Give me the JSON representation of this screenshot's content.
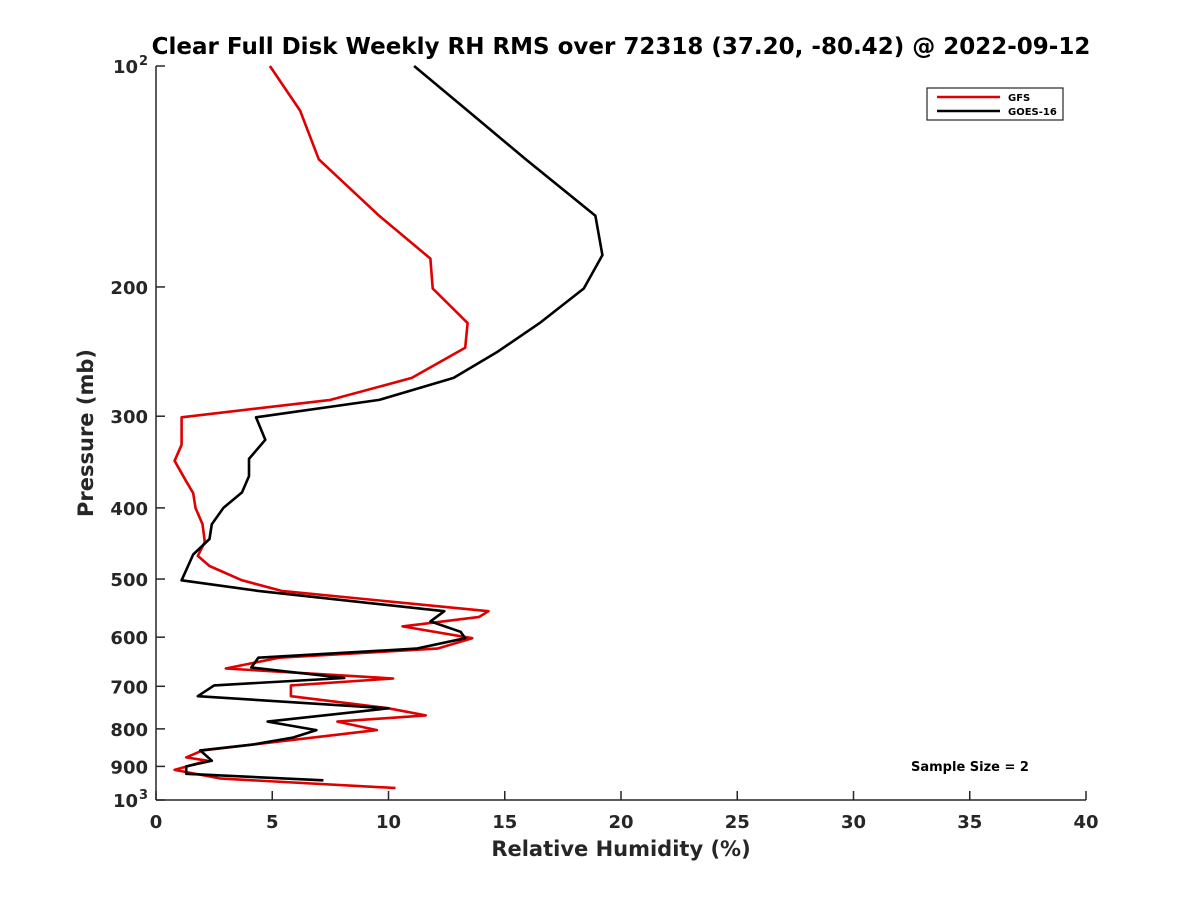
{
  "chart_data": {
    "type": "line",
    "title": "Clear Full Disk Weekly RH RMS over 72318 (37.20, -80.42) @ 2022-09-12",
    "xlabel": "Relative Humidity (%)",
    "ylabel": "Pressure (mb)",
    "xlim": [
      0,
      40
    ],
    "ylim": [
      100,
      1000
    ],
    "y_scale": "log",
    "y_reversed": true,
    "grid": false,
    "legend_position": "top-right",
    "x_ticks": [
      0,
      5,
      10,
      15,
      20,
      25,
      30,
      35,
      40
    ],
    "x_tick_labels": [
      "0",
      "5",
      "10",
      "15",
      "20",
      "25",
      "30",
      "35",
      "40"
    ],
    "y_ticks": [
      {
        "value": 100,
        "label": "10",
        "exp": "2"
      },
      {
        "value": 200,
        "label": "200",
        "exp": ""
      },
      {
        "value": 300,
        "label": "300",
        "exp": ""
      },
      {
        "value": 400,
        "label": "400",
        "exp": ""
      },
      {
        "value": 500,
        "label": "500",
        "exp": ""
      },
      {
        "value": 600,
        "label": "600",
        "exp": ""
      },
      {
        "value": 700,
        "label": "700",
        "exp": ""
      },
      {
        "value": 800,
        "label": "800",
        "exp": ""
      },
      {
        "value": 900,
        "label": "900",
        "exp": ""
      },
      {
        "value": 1000,
        "label": "10",
        "exp": "3"
      }
    ],
    "annotation": "Sample Size = 2",
    "series": [
      {
        "name": "GFS",
        "color": "#e00000",
        "points": [
          [
            4.9,
            100
          ],
          [
            6.2,
            115
          ],
          [
            7.0,
            134
          ],
          [
            9.6,
            160
          ],
          [
            11.8,
            183
          ],
          [
            11.9,
            201
          ],
          [
            13.4,
            224
          ],
          [
            13.3,
            242
          ],
          [
            11.0,
            266
          ],
          [
            7.5,
            285
          ],
          [
            1.1,
            301
          ],
          [
            1.1,
            328
          ],
          [
            0.8,
            345
          ],
          [
            1.3,
            368
          ],
          [
            1.6,
            382
          ],
          [
            1.7,
            400
          ],
          [
            2.0,
            421
          ],
          [
            2.1,
            445
          ],
          [
            1.8,
            465
          ],
          [
            2.3,
            480
          ],
          [
            3.7,
            502
          ],
          [
            5.4,
            519
          ],
          [
            14.3,
            553
          ],
          [
            13.9,
            563
          ],
          [
            10.6,
            580
          ],
          [
            13.6,
            602
          ],
          [
            12.1,
            622
          ],
          [
            5.3,
            640
          ],
          [
            3.0,
            662
          ],
          [
            10.2,
            683
          ],
          [
            5.8,
            698
          ],
          [
            5.8,
            722
          ],
          [
            10.0,
            750
          ],
          [
            11.6,
            767
          ],
          [
            7.8,
            782
          ],
          [
            9.5,
            803
          ],
          [
            2.0,
            856
          ],
          [
            1.3,
            875
          ],
          [
            2.2,
            884
          ],
          [
            0.8,
            910
          ],
          [
            2.8,
            935
          ],
          [
            10.3,
            963
          ]
        ]
      },
      {
        "name": "GOES-16",
        "color": "#000000",
        "points": [
          [
            11.1,
            100
          ],
          [
            13.4,
            115
          ],
          [
            15.9,
            134
          ],
          [
            18.9,
            160
          ],
          [
            19.2,
            181
          ],
          [
            18.4,
            201
          ],
          [
            16.5,
            224
          ],
          [
            14.7,
            245
          ],
          [
            12.8,
            266
          ],
          [
            9.6,
            285
          ],
          [
            4.3,
            301
          ],
          [
            4.7,
            323
          ],
          [
            4.0,
            343
          ],
          [
            4.0,
            362
          ],
          [
            3.7,
            381
          ],
          [
            2.9,
            400
          ],
          [
            2.4,
            421
          ],
          [
            2.3,
            441
          ],
          [
            1.6,
            463
          ],
          [
            1.1,
            502
          ],
          [
            4.4,
            519
          ],
          [
            12.4,
            553
          ],
          [
            11.8,
            571
          ],
          [
            13.1,
            590
          ],
          [
            13.3,
            602
          ],
          [
            11.2,
            622
          ],
          [
            4.4,
            640
          ],
          [
            4.1,
            660
          ],
          [
            8.1,
            682
          ],
          [
            2.5,
            698
          ],
          [
            1.8,
            722
          ],
          [
            10.0,
            750
          ],
          [
            4.8,
            782
          ],
          [
            6.9,
            803
          ],
          [
            5.9,
            822
          ],
          [
            4.2,
            840
          ],
          [
            1.9,
            856
          ],
          [
            2.4,
            884
          ],
          [
            1.3,
            900
          ],
          [
            1.3,
            921
          ],
          [
            7.2,
            940
          ]
        ]
      }
    ]
  }
}
